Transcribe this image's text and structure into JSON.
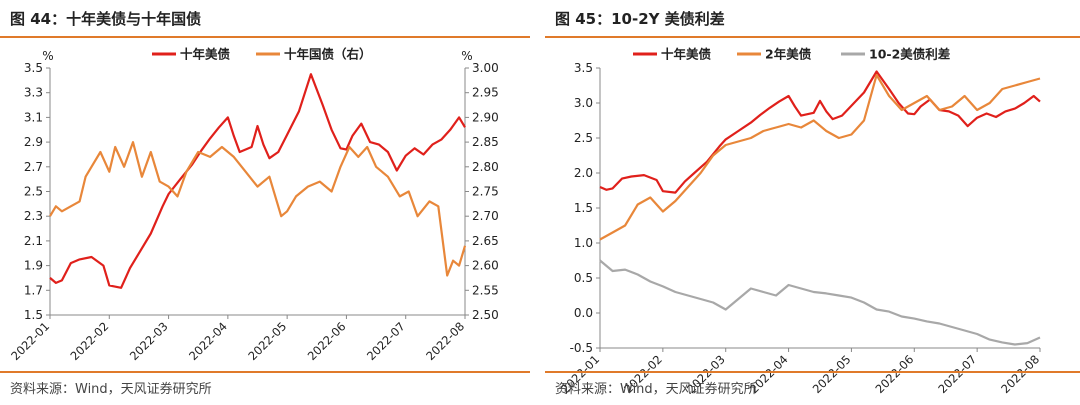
{
  "left": {
    "title": "图 44：十年美债与十年国债",
    "source": "资料来源：Wind，天风证券研究所",
    "chart_data": {
      "type": "line",
      "unit_left": "%",
      "unit_right": "%",
      "xticks": [
        "2022-01",
        "2022-02",
        "2022-03",
        "2022-04",
        "2022-05",
        "2022-06",
        "2022-07",
        "2022-08"
      ],
      "ylim_left": [
        1.5,
        3.5
      ],
      "yticks_left": [
        "1.5",
        "1.7",
        "1.9",
        "2.1",
        "2.3",
        "2.5",
        "2.7",
        "2.9",
        "3.1",
        "3.3",
        "3.5"
      ],
      "ylim_right": [
        2.5,
        3.0
      ],
      "yticks_right": [
        "2.50",
        "2.55",
        "2.60",
        "2.65",
        "2.70",
        "2.75",
        "2.80",
        "2.85",
        "2.90",
        "2.95",
        "3.00"
      ],
      "series": [
        {
          "name": "十年美债",
          "color": "#e0201b",
          "axis": "left",
          "x": [
            0,
            0.1,
            0.2,
            0.35,
            0.5,
            0.7,
            0.9,
            1.0,
            1.2,
            1.35,
            1.5,
            1.7,
            1.9,
            2.0,
            2.2,
            2.4,
            2.55,
            2.7,
            2.85,
            3.0,
            3.1,
            3.2,
            3.4,
            3.5,
            3.6,
            3.7,
            3.85,
            4.0,
            4.2,
            4.4,
            4.6,
            4.75,
            4.9,
            5.0,
            5.1,
            5.25,
            5.4,
            5.55,
            5.7,
            5.85,
            6.0,
            6.15,
            6.3,
            6.45,
            6.6,
            6.75,
            6.9,
            7.0
          ],
          "y": [
            1.8,
            1.76,
            1.78,
            1.92,
            1.95,
            1.97,
            1.9,
            1.74,
            1.72,
            1.88,
            2.0,
            2.16,
            2.38,
            2.48,
            2.6,
            2.72,
            2.83,
            2.93,
            3.02,
            3.1,
            2.95,
            2.82,
            2.86,
            3.03,
            2.88,
            2.77,
            2.82,
            2.96,
            3.15,
            3.45,
            3.2,
            3.0,
            2.85,
            2.84,
            2.95,
            3.05,
            2.9,
            2.88,
            2.82,
            2.67,
            2.79,
            2.85,
            2.8,
            2.88,
            2.92,
            3.0,
            3.1,
            3.02
          ]
        },
        {
          "name": "十年国债（右）",
          "color": "#e8873a",
          "axis": "right",
          "x": [
            0,
            0.1,
            0.2,
            0.35,
            0.5,
            0.6,
            0.7,
            0.85,
            1.0,
            1.1,
            1.25,
            1.4,
            1.55,
            1.7,
            1.85,
            2.0,
            2.15,
            2.3,
            2.5,
            2.7,
            2.9,
            3.1,
            3.3,
            3.5,
            3.7,
            3.9,
            4.0,
            4.15,
            4.35,
            4.55,
            4.75,
            4.9,
            5.05,
            5.2,
            5.35,
            5.5,
            5.7,
            5.9,
            6.05,
            6.2,
            6.4,
            6.55,
            6.7,
            6.8,
            6.9,
            7.0
          ],
          "y": [
            2.7,
            2.72,
            2.71,
            2.72,
            2.73,
            2.78,
            2.8,
            2.83,
            2.79,
            2.84,
            2.8,
            2.85,
            2.78,
            2.83,
            2.77,
            2.76,
            2.74,
            2.79,
            2.83,
            2.82,
            2.84,
            2.82,
            2.79,
            2.76,
            2.78,
            2.7,
            2.71,
            2.74,
            2.76,
            2.77,
            2.75,
            2.8,
            2.84,
            2.82,
            2.84,
            2.8,
            2.78,
            2.74,
            2.75,
            2.7,
            2.73,
            2.72,
            2.58,
            2.61,
            2.6,
            2.64
          ]
        }
      ]
    }
  },
  "right": {
    "title": "图 45：10-2Y  美债利差",
    "source": "资料来源：Wind，天风证券研究所",
    "chart_data": {
      "type": "line",
      "xticks": [
        "2022-01",
        "2022-02",
        "2022-03",
        "2022-04",
        "2022-05",
        "2022-06",
        "2022-07",
        "2022-08"
      ],
      "ylim": [
        -0.5,
        3.5
      ],
      "yticks": [
        "-0.5",
        "0.0",
        "0.5",
        "1.0",
        "1.5",
        "2.0",
        "2.5",
        "3.0",
        "3.5"
      ],
      "series": [
        {
          "name": "十年美债",
          "color": "#e0201b",
          "x": [
            0,
            0.1,
            0.2,
            0.35,
            0.5,
            0.7,
            0.9,
            1.0,
            1.2,
            1.35,
            1.5,
            1.7,
            1.9,
            2.0,
            2.2,
            2.4,
            2.55,
            2.7,
            2.85,
            3.0,
            3.1,
            3.2,
            3.4,
            3.5,
            3.6,
            3.7,
            3.85,
            4.0,
            4.2,
            4.4,
            4.6,
            4.75,
            4.9,
            5.0,
            5.1,
            5.25,
            5.4,
            5.55,
            5.7,
            5.85,
            6.0,
            6.15,
            6.3,
            6.45,
            6.6,
            6.75,
            6.9,
            7.0
          ],
          "y": [
            1.8,
            1.76,
            1.78,
            1.92,
            1.95,
            1.97,
            1.9,
            1.74,
            1.72,
            1.88,
            2.0,
            2.16,
            2.38,
            2.48,
            2.6,
            2.72,
            2.83,
            2.93,
            3.02,
            3.1,
            2.95,
            2.82,
            2.86,
            3.03,
            2.88,
            2.77,
            2.82,
            2.96,
            3.15,
            3.45,
            3.2,
            3.0,
            2.85,
            2.84,
            2.95,
            3.05,
            2.9,
            2.88,
            2.82,
            2.67,
            2.79,
            2.85,
            2.8,
            2.88,
            2.92,
            3.0,
            3.1,
            3.02
          ]
        },
        {
          "name": "2年美债",
          "color": "#e8873a",
          "x": [
            0,
            0.2,
            0.4,
            0.6,
            0.8,
            1.0,
            1.2,
            1.4,
            1.6,
            1.8,
            2.0,
            2.2,
            2.4,
            2.6,
            2.8,
            3.0,
            3.2,
            3.4,
            3.6,
            3.8,
            4.0,
            4.2,
            4.4,
            4.6,
            4.8,
            5.0,
            5.2,
            5.4,
            5.6,
            5.8,
            6.0,
            6.2,
            6.4,
            6.6,
            6.8,
            7.0
          ],
          "y": [
            1.05,
            1.15,
            1.25,
            1.55,
            1.65,
            1.45,
            1.6,
            1.8,
            2.0,
            2.25,
            2.4,
            2.45,
            2.5,
            2.6,
            2.65,
            2.7,
            2.65,
            2.75,
            2.6,
            2.5,
            2.55,
            2.75,
            3.4,
            3.1,
            2.9,
            3.0,
            3.1,
            2.9,
            2.95,
            3.1,
            2.9,
            3.0,
            3.2,
            3.25,
            3.3,
            3.35
          ]
        },
        {
          "name": "10-2美债利差",
          "color": "#a8a8a8",
          "x": [
            0,
            0.2,
            0.4,
            0.6,
            0.8,
            1.0,
            1.2,
            1.4,
            1.6,
            1.8,
            2.0,
            2.2,
            2.4,
            2.6,
            2.8,
            3.0,
            3.2,
            3.4,
            3.6,
            3.8,
            4.0,
            4.2,
            4.4,
            4.6,
            4.8,
            5.0,
            5.2,
            5.4,
            5.6,
            5.8,
            6.0,
            6.2,
            6.4,
            6.6,
            6.8,
            7.0
          ],
          "y": [
            0.75,
            0.6,
            0.62,
            0.55,
            0.45,
            0.38,
            0.3,
            0.25,
            0.2,
            0.15,
            0.05,
            0.2,
            0.35,
            0.3,
            0.25,
            0.4,
            0.35,
            0.3,
            0.28,
            0.25,
            0.22,
            0.15,
            0.05,
            0.02,
            -0.05,
            -0.08,
            -0.12,
            -0.15,
            -0.2,
            -0.25,
            -0.3,
            -0.38,
            -0.42,
            -0.45,
            -0.43,
            -0.35
          ]
        }
      ]
    }
  }
}
